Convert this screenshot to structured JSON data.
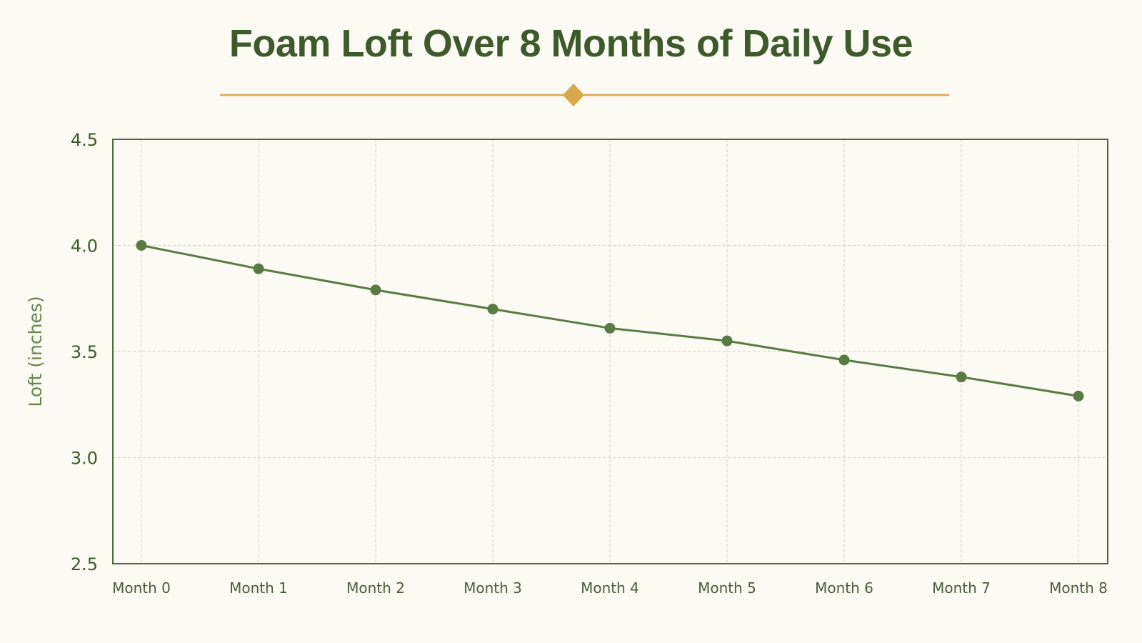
{
  "chart_data": {
    "type": "line",
    "title": "Foam Loft Over 8 Months of Daily Use",
    "xlabel": "",
    "ylabel": "Loft (inches)",
    "categories": [
      "Month 0",
      "Month 1",
      "Month 2",
      "Month 3",
      "Month 4",
      "Month 5",
      "Month 6",
      "Month 7",
      "Month 8"
    ],
    "series": [
      {
        "values": [
          4.0,
          3.89,
          3.79,
          3.7,
          3.61,
          3.55,
          3.46,
          3.38,
          3.29
        ]
      }
    ],
    "ylim": [
      2.5,
      4.5
    ],
    "yticks": [
      "2.5",
      "3.0",
      "3.5",
      "4.0",
      "4.5"
    ],
    "grid": true,
    "legend": "none",
    "colors": {
      "line": "#5a7a44",
      "marker": "#5a7a44",
      "accent": "#d9a84a",
      "frame": "#4e6a3a",
      "grid": "#d8d8d2",
      "title": "#3e5a2c",
      "background": "#fbfaf3"
    }
  }
}
